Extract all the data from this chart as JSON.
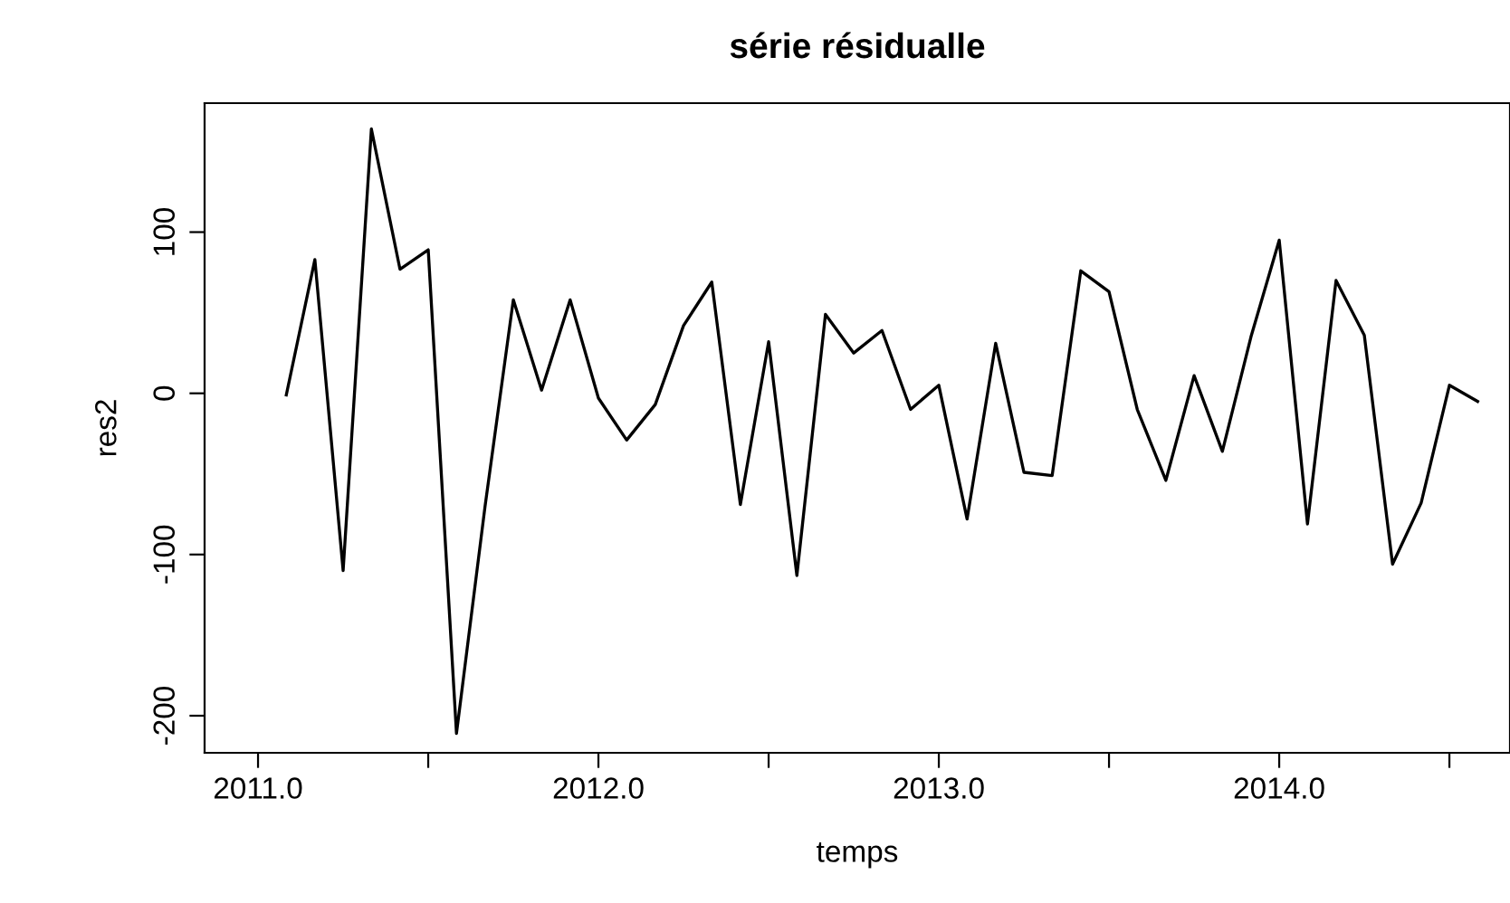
{
  "chart_data": {
    "type": "line",
    "title": "série résidualle",
    "xlabel": "temps",
    "ylabel": "res2",
    "x": [
      2011.083,
      2011.167,
      2011.25,
      2011.333,
      2011.417,
      2011.5,
      2011.583,
      2011.667,
      2011.75,
      2011.833,
      2011.917,
      2012.0,
      2012.083,
      2012.167,
      2012.25,
      2012.333,
      2012.417,
      2012.5,
      2012.583,
      2012.667,
      2012.75,
      2012.833,
      2012.917,
      2013.0,
      2013.083,
      2013.167,
      2013.25,
      2013.333,
      2013.417,
      2013.5,
      2013.583,
      2013.667,
      2013.75,
      2013.833,
      2013.917,
      2014.0,
      2014.083,
      2014.167,
      2014.25,
      2014.333,
      2014.417,
      2014.5,
      2014.583
    ],
    "series": [
      {
        "color": "#000000",
        "values": [
          -1,
          83,
          -110,
          164,
          77,
          89,
          -211,
          -70,
          58,
          2,
          58,
          -3,
          -29,
          -7,
          42,
          69,
          -69,
          32,
          -113,
          49,
          25,
          39,
          -10,
          5,
          -78,
          31,
          -49,
          -51,
          76,
          63,
          -10,
          -54,
          11,
          -36,
          35,
          95,
          -81,
          70,
          36,
          -106,
          -68,
          5,
          -5
        ]
      }
    ],
    "xlim": [
      2010.843,
      2014.678
    ],
    "ylim": [
      -223,
      180
    ],
    "xticks": [
      {
        "value": 2011,
        "label": "2011.0"
      },
      {
        "value": 2011.5,
        "label": null
      },
      {
        "value": 2012,
        "label": "2012.0"
      },
      {
        "value": 2012.5,
        "label": null
      },
      {
        "value": 2013,
        "label": "2013.0"
      },
      {
        "value": 2013.5,
        "label": null
      },
      {
        "value": 2014,
        "label": "2014.0"
      },
      {
        "value": 2014.5,
        "label": null
      }
    ],
    "yticks": [
      -200,
      -100,
      0,
      100
    ],
    "grid": false,
    "legend": false,
    "marker": "none",
    "line_style": "solid"
  }
}
